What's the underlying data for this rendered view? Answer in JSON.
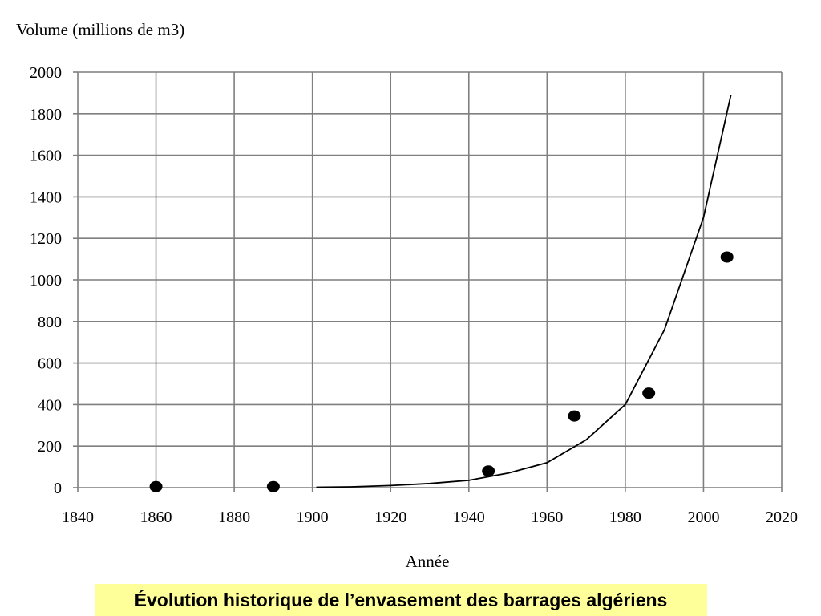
{
  "caption": "Évolution historique de l’envasement des barrages algériens",
  "chart_data": {
    "type": "scatter",
    "title": "",
    "ylabel": "Volume (millions de m3)",
    "xlabel": "Année",
    "xlim": [
      1840,
      2020
    ],
    "ylim": [
      0,
      2000
    ],
    "x_ticks": [
      "1840",
      "1860",
      "1880",
      "1900",
      "1920",
      "1940",
      "1960",
      "1980",
      "2000",
      "2020"
    ],
    "y_ticks": [
      "0",
      "200",
      "400",
      "600",
      "800",
      "1000",
      "1200",
      "1400",
      "1600",
      "1800",
      "2000"
    ],
    "grid": true,
    "series": [
      {
        "kind": "points",
        "x": [
          1860,
          1890,
          1945,
          1967,
          1986,
          2006
        ],
        "y": [
          5,
          5,
          80,
          345,
          455,
          1110
        ]
      },
      {
        "kind": "trend-line",
        "x": [
          1901,
          1910,
          1920,
          1930,
          1940,
          1950,
          1960,
          1970,
          1980,
          1990,
          2000,
          2007
        ],
        "y": [
          2,
          4,
          10,
          20,
          35,
          70,
          120,
          230,
          400,
          760,
          1300,
          1890
        ]
      }
    ],
    "colors": {
      "points": "#000000",
      "line": "#000000",
      "grid": "#7f7f7f",
      "background": "#ffffff"
    }
  }
}
